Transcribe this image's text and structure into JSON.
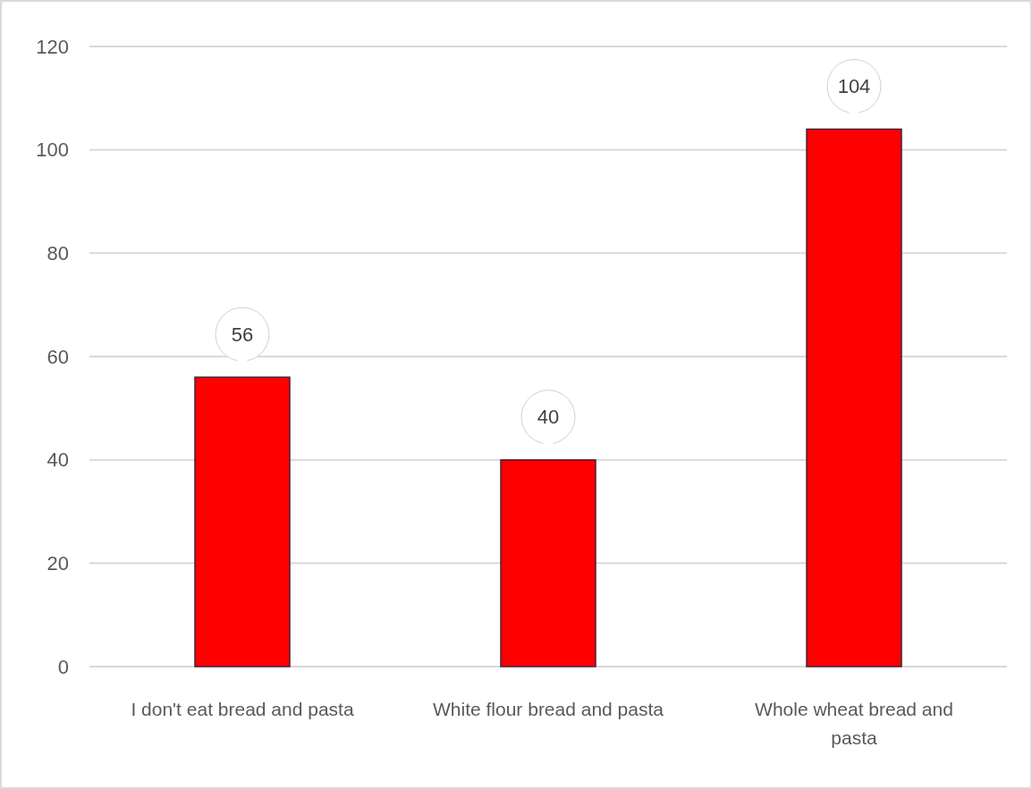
{
  "chart_data": {
    "type": "bar",
    "categories": [
      "I don't eat bread and pasta",
      "White flour bread and pasta",
      "Whole wheat bread and pasta"
    ],
    "values": [
      56,
      40,
      104
    ],
    "color": "#ff0000",
    "ylim": [
      0,
      120
    ],
    "yticks": [
      0,
      20,
      40,
      60,
      80,
      100,
      120
    ],
    "grid": "y",
    "data_labels": true
  }
}
